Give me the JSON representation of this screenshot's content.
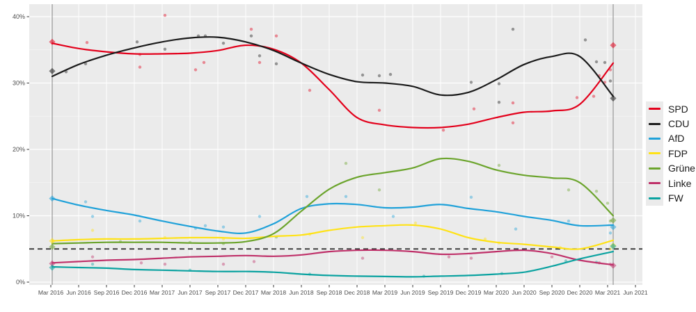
{
  "chart_data": {
    "type": "line",
    "title": "",
    "xlabel": "",
    "ylabel": "",
    "ylim": [
      0,
      42
    ],
    "grid": true,
    "legend_position": "right",
    "x_unit": "quarters since Mar 2016",
    "x_ticks": [
      "Mar 2016",
      "Jun 2016",
      "Sep 2016",
      "Dec 2016",
      "Mar 2017",
      "Jun 2017",
      "Sep 2017",
      "Dec 2017",
      "Mar 2018",
      "Jun 2018",
      "Sep 2018",
      "Dec 2018",
      "Mar 2019",
      "Jun 2019",
      "Sep 2019",
      "Dec 2019",
      "Mar 2020",
      "Jun 2020",
      "Sep 2020",
      "Dec 2020",
      "Mar 2021",
      "Jun 2021"
    ],
    "y_tick_values": [
      0,
      10,
      20,
      30,
      40
    ],
    "y_tick_labels": [
      "0%",
      "10%",
      "20%",
      "30%",
      "40%"
    ],
    "threshold": {
      "value": 5,
      "style": "dashed",
      "color": "#2b2b2b"
    },
    "election_line_quarters": [
      0.05,
      20.2
    ],
    "series": [
      {
        "name": "SPD",
        "color": "#e3001b",
        "values": [
          36.0,
          35.2,
          34.7,
          34.4,
          34.4,
          34.5,
          34.9,
          35.7,
          35.1,
          33.0,
          29.0,
          24.8,
          23.7,
          23.3,
          23.3,
          23.8,
          24.8,
          25.6,
          25.8,
          26.8,
          33.0
        ]
      },
      {
        "name": "CDU",
        "color": "#1a1a1a",
        "values": [
          31.0,
          32.8,
          34.2,
          35.3,
          36.2,
          36.8,
          36.9,
          36.2,
          34.9,
          33.0,
          31.3,
          30.2,
          30.0,
          29.5,
          28.2,
          28.6,
          30.5,
          32.8,
          34.0,
          34.0,
          28.0
        ]
      },
      {
        "name": "AfD",
        "color": "#1fa1d9",
        "values": [
          12.6,
          11.6,
          10.8,
          10.1,
          9.2,
          8.4,
          7.7,
          7.4,
          8.8,
          11.1,
          11.8,
          11.7,
          11.2,
          11.3,
          11.7,
          11.1,
          10.6,
          9.9,
          9.3,
          8.5,
          8.6
        ]
      },
      {
        "name": "FDP",
        "color": "#ffe215",
        "values": [
          6.2,
          6.4,
          6.5,
          6.5,
          6.6,
          6.7,
          6.7,
          6.6,
          6.9,
          7.1,
          7.8,
          8.3,
          8.5,
          8.6,
          8.0,
          6.7,
          6.0,
          5.7,
          5.3,
          5.0,
          6.3
        ]
      },
      {
        "name": "Grüne",
        "color": "#6ba42c",
        "values": [
          5.8,
          5.9,
          6.0,
          6.0,
          6.0,
          5.9,
          5.9,
          6.1,
          7.3,
          10.7,
          14.0,
          15.8,
          16.5,
          17.2,
          18.6,
          18.2,
          16.9,
          16.1,
          15.7,
          15.0,
          10.0
        ]
      },
      {
        "name": "Linke",
        "color": "#bf3069",
        "values": [
          2.9,
          3.1,
          3.3,
          3.4,
          3.6,
          3.8,
          3.9,
          4.0,
          3.9,
          4.1,
          4.6,
          4.8,
          4.8,
          4.6,
          4.2,
          4.3,
          4.6,
          4.8,
          4.3,
          3.3,
          2.6
        ]
      },
      {
        "name": "FW",
        "color": "#0aa2a0",
        "values": [
          2.3,
          2.2,
          2.1,
          1.9,
          1.8,
          1.7,
          1.6,
          1.6,
          1.5,
          1.2,
          1.0,
          0.9,
          0.85,
          0.8,
          0.9,
          1.0,
          1.2,
          1.5,
          2.4,
          3.5,
          4.6
        ]
      }
    ],
    "elections": [
      {
        "q": 0.05,
        "results": [
          {
            "party": "SPD",
            "value": 36.2
          },
          {
            "party": "CDU",
            "value": 31.8
          },
          {
            "party": "AfD",
            "value": 12.6
          },
          {
            "party": "FDP",
            "value": 6.2
          },
          {
            "party": "Grüne",
            "value": 5.3
          },
          {
            "party": "Linke",
            "value": 2.8
          },
          {
            "party": "FW",
            "value": 2.2
          }
        ]
      },
      {
        "q": 20.2,
        "results": [
          {
            "party": "SPD",
            "value": 35.7
          },
          {
            "party": "CDU",
            "value": 27.7
          },
          {
            "party": "AfD",
            "value": 8.3
          },
          {
            "party": "FDP",
            "value": 5.5
          },
          {
            "party": "Grüne",
            "value": 9.3
          },
          {
            "party": "Linke",
            "value": 2.5
          },
          {
            "party": "FW",
            "value": 5.4
          }
        ]
      }
    ],
    "polls": {
      "SPD": [
        [
          1.3,
          36.1
        ],
        [
          3.2,
          34.3
        ],
        [
          3.2,
          32.4
        ],
        [
          4.1,
          40.2
        ],
        [
          5.2,
          32.0
        ],
        [
          5.5,
          33.1
        ],
        [
          7.2,
          38.1
        ],
        [
          7.5,
          33.1
        ],
        [
          8.1,
          37.1
        ],
        [
          9.3,
          28.9
        ],
        [
          11.8,
          25.9
        ],
        [
          14.1,
          22.9
        ],
        [
          15.2,
          26.1
        ],
        [
          16.6,
          27.0
        ],
        [
          16.6,
          24.0
        ],
        [
          18.9,
          27.8
        ],
        [
          19.5,
          28.0
        ],
        [
          19.7,
          31.1
        ],
        [
          19.9,
          30.1
        ],
        [
          20.1,
          32.0
        ]
      ],
      "CDU": [
        [
          0.55,
          31.7
        ],
        [
          1.25,
          32.9
        ],
        [
          3.1,
          36.2
        ],
        [
          4.1,
          35.1
        ],
        [
          5.3,
          37.1
        ],
        [
          5.55,
          37.1
        ],
        [
          6.2,
          36.0
        ],
        [
          7.2,
          37.1
        ],
        [
          7.5,
          34.1
        ],
        [
          8.1,
          32.9
        ],
        [
          11.2,
          31.2
        ],
        [
          11.8,
          31.1
        ],
        [
          12.2,
          31.3
        ],
        [
          15.1,
          30.1
        ],
        [
          16.1,
          29.9
        ],
        [
          16.1,
          27.1
        ],
        [
          16.6,
          38.1
        ],
        [
          19.2,
          36.5
        ],
        [
          19.6,
          33.2
        ],
        [
          19.9,
          33.1
        ],
        [
          20.1,
          30.3
        ]
      ],
      "AfD": [
        [
          1.25,
          12.1
        ],
        [
          1.5,
          9.9
        ],
        [
          3.2,
          9.2
        ],
        [
          5.2,
          8.1
        ],
        [
          5.55,
          8.5
        ],
        [
          6.2,
          8.3
        ],
        [
          7.5,
          9.9
        ],
        [
          9.2,
          12.9
        ],
        [
          10.6,
          12.9
        ],
        [
          12.3,
          9.9
        ],
        [
          15.1,
          12.8
        ],
        [
          16.7,
          8.0
        ],
        [
          18.6,
          9.2
        ],
        [
          20.1,
          7.4
        ]
      ],
      "FDP": [
        [
          1.5,
          7.8
        ],
        [
          4.1,
          6.7
        ],
        [
          6.2,
          6.5
        ],
        [
          9.3,
          7.2
        ],
        [
          11.2,
          6.7
        ],
        [
          13.1,
          8.9
        ],
        [
          15.6,
          6.5
        ],
        [
          16.1,
          5.9
        ],
        [
          18.3,
          5.2
        ],
        [
          20.1,
          5.0
        ]
      ],
      "Grüne": [
        [
          2.5,
          6.1
        ],
        [
          5.0,
          6.0
        ],
        [
          6.2,
          5.8
        ],
        [
          8.1,
          6.8
        ],
        [
          10.6,
          17.9
        ],
        [
          11.8,
          13.9
        ],
        [
          16.1,
          17.6
        ],
        [
          18.6,
          13.9
        ],
        [
          19.6,
          13.7
        ],
        [
          20.0,
          11.9
        ],
        [
          20.1,
          9.2
        ]
      ],
      "Linke": [
        [
          1.5,
          3.8
        ],
        [
          3.25,
          2.9
        ],
        [
          4.1,
          2.7
        ],
        [
          6.2,
          2.7
        ],
        [
          7.3,
          3.1
        ],
        [
          11.2,
          3.6
        ],
        [
          14.3,
          3.8
        ],
        [
          15.1,
          3.6
        ],
        [
          18.0,
          3.8
        ],
        [
          19.7,
          2.9
        ],
        [
          20.1,
          2.7
        ]
      ],
      "FW": [
        [
          1.5,
          2.7
        ],
        [
          5.0,
          1.8
        ],
        [
          9.3,
          1.2
        ],
        [
          13.4,
          0.9
        ],
        [
          16.2,
          1.3
        ],
        [
          18.5,
          3.2
        ],
        [
          19.6,
          3.0
        ]
      ]
    },
    "panel_color": "#ebebeb",
    "gridline_color": "#ffffff",
    "election_line_color": "#8f8f8f",
    "tick_label_color": "#4d4d4d"
  },
  "legend": {
    "items": [
      {
        "label": "SPD",
        "color": "#e3001b"
      },
      {
        "label": "CDU",
        "color": "#1a1a1a"
      },
      {
        "label": "AfD",
        "color": "#1fa1d9"
      },
      {
        "label": "FDP",
        "color": "#ffe215"
      },
      {
        "label": "Grüne",
        "color": "#6ba42c"
      },
      {
        "label": "Linke",
        "color": "#bf3069"
      },
      {
        "label": "FW",
        "color": "#0aa2a0"
      }
    ]
  }
}
